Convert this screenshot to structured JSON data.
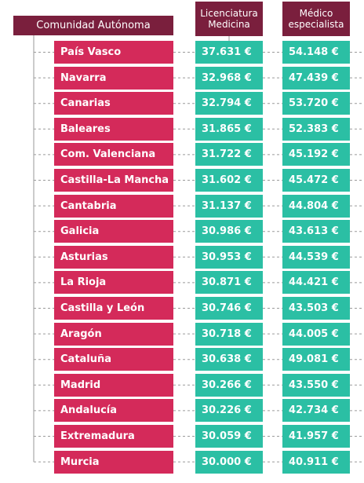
{
  "chart_data": {
    "type": "table",
    "headers": {
      "region": "Comunidad Autónoma",
      "licenciatura": [
        "Licenciatura",
        "Medicina"
      ],
      "medico": [
        "Médico",
        "especialista"
      ]
    },
    "rows": [
      {
        "region": "País Vasco",
        "licenciatura": "37.631 €",
        "medico": "54.148 €"
      },
      {
        "region": "Navarra",
        "licenciatura": "32.968 €",
        "medico": "47.439 €"
      },
      {
        "region": "Canarias",
        "licenciatura": "32.794 €",
        "medico": "53.720 €"
      },
      {
        "region": "Baleares",
        "licenciatura": "31.865 €",
        "medico": "52.383 €"
      },
      {
        "region": "Com. Valenciana",
        "licenciatura": "31.722 €",
        "medico": "45.192 €"
      },
      {
        "region": "Castilla-La Mancha",
        "licenciatura": "31.602 €",
        "medico": "45.472 €"
      },
      {
        "region": "Cantabria",
        "licenciatura": "31.137 €",
        "medico": "44.804 €"
      },
      {
        "region": "Galicia",
        "licenciatura": "30.986 €",
        "medico": "43.613 €"
      },
      {
        "region": "Asturias",
        "licenciatura": "30.953 €",
        "medico": "44.539 €"
      },
      {
        "region": "La Rioja",
        "licenciatura": "30.871 €",
        "medico": "44.421 €"
      },
      {
        "region": "Castilla y León",
        "licenciatura": "30.746 €",
        "medico": "43.503 €"
      },
      {
        "region": "Aragón",
        "licenciatura": "30.718 €",
        "medico": "44.005 €"
      },
      {
        "region": "Cataluña",
        "licenciatura": "30.638 €",
        "medico": "49.081 €"
      },
      {
        "region": "Madrid",
        "licenciatura": "30.266 €",
        "medico": "43.550 €"
      },
      {
        "region": "Andalucía",
        "licenciatura": "30.226 €",
        "medico": "42.734 €"
      },
      {
        "region": "Extremadura",
        "licenciatura": "30.059 €",
        "medico": "41.957 €"
      },
      {
        "region": "Murcia",
        "licenciatura": "30.000 €",
        "medico": "40.911 €"
      }
    ]
  },
  "colors": {
    "header": "#7a1f3d",
    "region": "#d42a5a",
    "value": "#2bbfa4",
    "connector": "#9a9a9a"
  }
}
